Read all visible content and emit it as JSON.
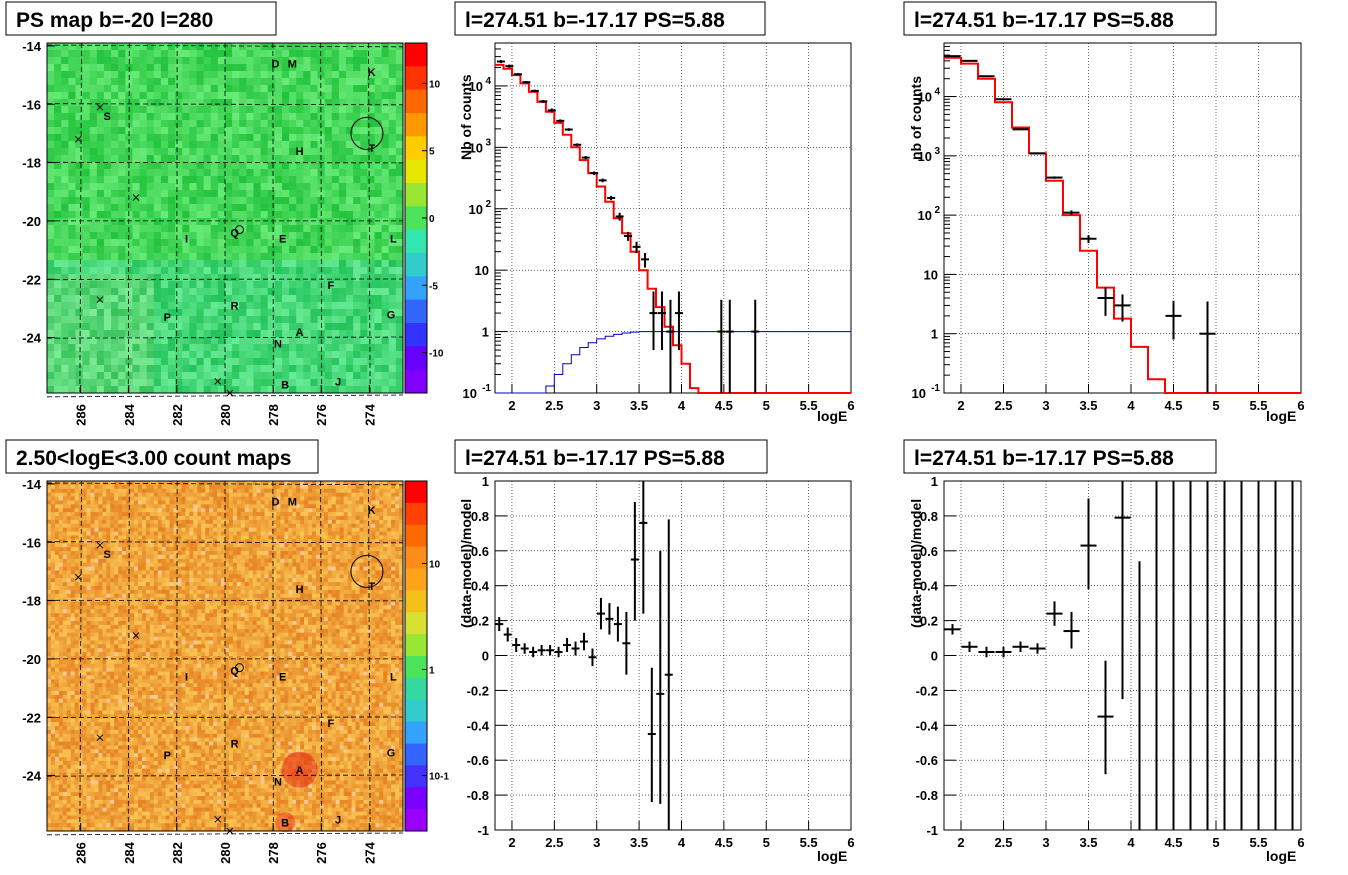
{
  "titles": {
    "map_top": "PS map b=-20 l=280",
    "map_bottom": "2.50<logE<3.00 count maps",
    "spec_left": "l=274.51 b=-17.17 PS=5.88",
    "spec_right": "l=274.51 b=-17.17 PS=5.88",
    "res_left": "l=274.51 b=-17.17 PS=5.88",
    "res_right": "l=274.51 b=-17.17 PS=5.88"
  },
  "axes": {
    "xlabel": "logE",
    "ylabel_spec_left": "Nb of counts",
    "ylabel_spec_right": "nb of counts",
    "ylabel_res": "(data-model)/model"
  },
  "map_axes": {
    "lon_ticks": [
      "286",
      "284",
      "282",
      "280",
      "278",
      "276",
      "274"
    ],
    "lat_ticks": [
      "-14",
      "-16",
      "-18",
      "-20",
      "-22",
      "-24"
    ]
  },
  "colorbar_top": {
    "ticks": [
      "10",
      "5",
      "0",
      "-5",
      "-10"
    ]
  },
  "colorbar_bottom": {
    "ticks": [
      "10",
      "1",
      "10-1"
    ]
  },
  "sources": [
    {
      "name": "D",
      "l": 277.9,
      "b": -14.6
    },
    {
      "name": "M",
      "l": 277.2,
      "b": -14.6
    },
    {
      "name": "K",
      "l": 273.9,
      "b": -14.9
    },
    {
      "name": "S",
      "l": 284.9,
      "b": -16.4
    },
    {
      "name": "H",
      "l": 276.9,
      "b": -17.6
    },
    {
      "name": "T",
      "l": 273.9,
      "b": -17.5
    },
    {
      "name": "I",
      "l": 281.6,
      "b": -20.6
    },
    {
      "name": "Q",
      "l": 279.6,
      "b": -20.4
    },
    {
      "name": "E",
      "l": 277.6,
      "b": -20.6
    },
    {
      "name": "L",
      "l": 273.0,
      "b": -20.6
    },
    {
      "name": "F",
      "l": 275.6,
      "b": -22.2
    },
    {
      "name": "P",
      "l": 282.4,
      "b": -23.3
    },
    {
      "name": "R",
      "l": 279.6,
      "b": -22.9
    },
    {
      "name": "G",
      "l": 273.1,
      "b": -23.2
    },
    {
      "name": "A",
      "l": 276.9,
      "b": -23.8
    },
    {
      "name": "N",
      "l": 277.8,
      "b": -24.2
    },
    {
      "name": "B",
      "l": 277.5,
      "b": -25.6
    },
    {
      "name": "J",
      "l": 275.3,
      "b": -25.5
    }
  ],
  "source_marker": "circle-icon",
  "crosses": [
    {
      "l": 285.2,
      "b": -16.1
    },
    {
      "l": 286.1,
      "b": -17.2
    },
    {
      "l": 283.7,
      "b": -19.2
    },
    {
      "l": 285.2,
      "b": -22.7
    },
    {
      "l": 280.3,
      "b": -25.5
    },
    {
      "l": 279.8,
      "b": -25.9
    }
  ],
  "small_circles": [
    {
      "l": 279.4,
      "b": -20.3
    }
  ],
  "big_circle": {
    "l": 274.1,
    "b": -17.0
  },
  "colors": {
    "model": "#ff0000",
    "efficiency": "#0000cc",
    "data": "#000000",
    "map_top_base": "#4be35a",
    "map_bottom_base": "#f3a63c"
  },
  "chart_data": [
    {
      "type": "heatmap",
      "title": "PS map b=-20 l=280",
      "xlim": [
        287.4,
        272.6
      ],
      "ylim": [
        -25.9,
        -13.9
      ],
      "colorbar": {
        "range": [
          -13,
          13
        ],
        "ticks": [
          10,
          5,
          0,
          -5,
          -10
        ]
      }
    },
    {
      "type": "line",
      "title": "l=274.51 b=-17.17 PS=5.88",
      "xlabel": "logE",
      "ylabel": "Nb of counts",
      "xlim": [
        1.8,
        6
      ],
      "ylim": [
        0.1,
        50000
      ],
      "yscale": "log",
      "model": {
        "edges": [
          1.8,
          1.9,
          2.0,
          2.1,
          2.2,
          2.3,
          2.4,
          2.5,
          2.6,
          2.7,
          2.8,
          2.9,
          3.0,
          3.1,
          3.2,
          3.3,
          3.4,
          3.5,
          3.6,
          3.7,
          3.8,
          3.9,
          4.0,
          4.1,
          4.2,
          4.3,
          6.0
        ],
        "values": [
          22000,
          19000,
          15000,
          11000,
          8000,
          5500,
          3800,
          2500,
          1600,
          1000,
          620,
          380,
          230,
          130,
          70,
          40,
          20,
          10,
          5,
          2.5,
          1.2,
          0.6,
          0.3,
          0.12,
          0.1,
          0.1
        ]
      },
      "efficiency": {
        "edges": [
          1.8,
          2.4,
          2.5,
          2.6,
          2.7,
          2.8,
          2.9,
          3.0,
          3.1,
          3.2,
          3.3,
          3.4,
          3.5,
          3.6,
          6.0
        ],
        "values": [
          0.1,
          0.13,
          0.2,
          0.3,
          0.42,
          0.55,
          0.66,
          0.76,
          0.84,
          0.9,
          0.95,
          0.98,
          1.0,
          1.0
        ]
      },
      "data": {
        "x": [
          1.87,
          1.97,
          2.07,
          2.17,
          2.27,
          2.37,
          2.47,
          2.57,
          2.67,
          2.77,
          2.87,
          2.97,
          3.07,
          3.17,
          3.27,
          3.37,
          3.47,
          3.57,
          3.67,
          3.77,
          3.87,
          3.97,
          4.47,
          4.57,
          4.87
        ],
        "y": [
          25000,
          21000,
          15500,
          11500,
          8300,
          5600,
          4000,
          2700,
          1950,
          1100,
          680,
          380,
          290,
          150,
          75,
          36,
          24,
          15,
          2,
          2,
          1,
          2,
          1,
          1,
          1
        ],
        "lo": [
          23500,
          19700,
          14800,
          11000,
          7900,
          5300,
          3700,
          2550,
          1850,
          1040,
          640,
          355,
          270,
          138,
          64,
          30,
          19,
          11,
          0.5,
          0.5,
          0.1,
          0.5,
          0.1,
          0.1,
          0.1
        ],
        "hi": [
          26500,
          22300,
          16200,
          12000,
          8700,
          5900,
          4300,
          2850,
          2050,
          1160,
          720,
          405,
          310,
          162,
          86,
          42,
          29,
          19,
          4.5,
          4.5,
          3.3,
          4.5,
          3.3,
          3.3,
          3.3
        ]
      }
    },
    {
      "type": "line",
      "title": "l=274.51 b=-17.17 PS=5.88",
      "xlabel": "logE",
      "ylabel": "nb of counts",
      "xlim": [
        1.8,
        6
      ],
      "ylim": [
        0.1,
        80000
      ],
      "yscale": "log",
      "model": {
        "edges": [
          1.8,
          2.0,
          2.2,
          2.4,
          2.6,
          2.8,
          3.0,
          3.2,
          3.4,
          3.6,
          3.8,
          4.0,
          4.2,
          4.4,
          6.0
        ],
        "values": [
          45000,
          36000,
          20000,
          8000,
          3000,
          1100,
          380,
          100,
          25,
          6,
          1.8,
          0.6,
          0.17,
          0.1
        ]
      },
      "data": {
        "x": [
          1.9,
          2.1,
          2.3,
          2.5,
          2.7,
          2.9,
          3.1,
          3.3,
          3.5,
          3.7,
          3.9,
          4.5,
          4.9
        ],
        "y": [
          48000,
          40000,
          22000,
          9000,
          2800,
          1100,
          430,
          110,
          40,
          4,
          3,
          2,
          1
        ],
        "lo": [
          47000,
          39000,
          21700,
          8800,
          2700,
          1060,
          410,
          100,
          34,
          2,
          1.6,
          0.8,
          0.1
        ],
        "hi": [
          49000,
          41000,
          22300,
          9200,
          2900,
          1140,
          450,
          120,
          46,
          6,
          4.6,
          3.6,
          3.5
        ]
      }
    },
    {
      "type": "heatmap",
      "title": "2.50<logE<3.00 count maps",
      "xlim": [
        287.4,
        272.6
      ],
      "ylim": [
        -25.9,
        -13.9
      ],
      "colorbar": {
        "scale": "log",
        "range": [
          0.03,
          60
        ],
        "ticks": [
          10,
          1,
          0.1
        ]
      }
    },
    {
      "type": "scatter",
      "title": "l=274.51 b=-17.17 PS=5.88",
      "xlabel": "logE",
      "ylabel": "(data-model)/model",
      "xlim": [
        1.8,
        6
      ],
      "ylim": [
        -1,
        1
      ],
      "data": {
        "x": [
          1.85,
          1.95,
          2.05,
          2.15,
          2.25,
          2.35,
          2.45,
          2.55,
          2.65,
          2.75,
          2.85,
          2.95,
          3.05,
          3.15,
          3.25,
          3.35,
          3.45,
          3.55,
          3.65,
          3.75,
          3.85
        ],
        "y": [
          0.18,
          0.12,
          0.06,
          0.04,
          0.02,
          0.03,
          0.03,
          0.02,
          0.06,
          0.04,
          0.08,
          -0.01,
          0.24,
          0.21,
          0.18,
          0.07,
          0.55,
          0.76,
          -0.45,
          -0.22,
          -0.11
        ],
        "lo": [
          0.14,
          0.08,
          0.02,
          0.01,
          -0.01,
          0.0,
          0.0,
          -0.01,
          0.02,
          0.0,
          0.03,
          -0.06,
          0.15,
          0.12,
          0.08,
          -0.11,
          0.2,
          0.24,
          -0.84,
          -0.85,
          -1.0
        ],
        "hi": [
          0.22,
          0.16,
          0.1,
          0.07,
          0.05,
          0.06,
          0.06,
          0.05,
          0.1,
          0.08,
          0.13,
          0.04,
          0.33,
          0.3,
          0.28,
          0.25,
          0.88,
          1.0,
          -0.07,
          0.6,
          0.78
        ]
      }
    },
    {
      "type": "scatter",
      "title": "l=274.51 b=-17.17 PS=5.88",
      "xlabel": "logE",
      "ylabel": "(data-model)/model",
      "xlim": [
        1.8,
        6
      ],
      "ylim": [
        -1,
        1
      ],
      "data": {
        "x": [
          1.9,
          2.1,
          2.3,
          2.5,
          2.7,
          2.9,
          3.1,
          3.3,
          3.5,
          3.7,
          3.9,
          4.1,
          4.3,
          4.5,
          4.7,
          4.9,
          5.1,
          5.3,
          5.5,
          5.7,
          5.9
        ],
        "y": [
          0.15,
          0.05,
          0.02,
          0.02,
          0.05,
          0.04,
          0.24,
          0.14,
          0.63,
          -0.35,
          0.79,
          null,
          null,
          null,
          null,
          null,
          null,
          null,
          null,
          null,
          null
        ],
        "lo": [
          0.12,
          0.02,
          -0.01,
          -0.01,
          0.02,
          0.01,
          0.17,
          0.04,
          0.38,
          -0.68,
          -0.25,
          -1.0,
          -1.0,
          -1.0,
          -1.0,
          -1.0,
          -1.0,
          -1.0,
          -1.0,
          -1.0,
          -1.0
        ],
        "hi": [
          0.18,
          0.08,
          0.05,
          0.05,
          0.08,
          0.07,
          0.31,
          0.25,
          0.9,
          -0.03,
          1.0,
          0.54,
          1.0,
          1.0,
          1.0,
          1.0,
          1.0,
          1.0,
          1.0,
          1.0,
          1.0
        ]
      }
    }
  ]
}
